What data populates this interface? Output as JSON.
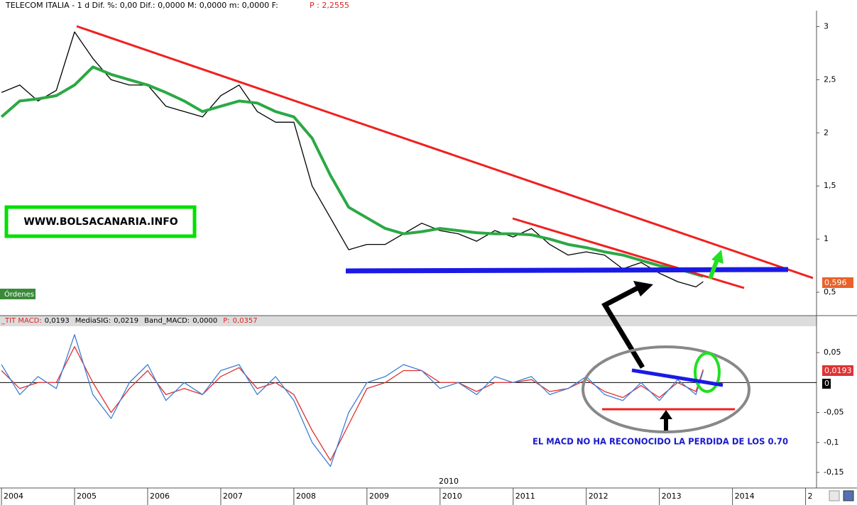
{
  "header": {
    "text": "TELECOM ITALIA -  1 d Dif. %: 0,00 Dif.: 0,0000 M: 0,0000 m: 0,0000 F:",
    "price": "P : 2,2555"
  },
  "watermark": "WWW.BOLSACANARIA.INFO",
  "orders_label": "Órdenes",
  "annotation": "EL MACD NO HA RECONOCIDO LA PERDIDA DE LOS 0.70",
  "chart_data": [
    {
      "type": "line",
      "x": [
        2004.0,
        2004.25,
        2004.5,
        2004.75,
        2005.0,
        2005.25,
        2005.5,
        2005.75,
        2006.0,
        2006.25,
        2006.5,
        2006.75,
        2007.0,
        2007.25,
        2007.5,
        2007.75,
        2008.0,
        2008.25,
        2008.5,
        2008.75,
        2009.0,
        2009.25,
        2009.5,
        2009.75,
        2010.0,
        2010.25,
        2010.5,
        2010.75,
        2011.0,
        2011.25,
        2011.5,
        2011.75,
        2012.0,
        2012.25,
        2012.5,
        2012.75,
        2013.0,
        2013.25,
        2013.5,
        2013.6
      ],
      "series": [
        {
          "color": "#000000",
          "values": [
            2.38,
            2.45,
            2.3,
            2.4,
            2.95,
            2.7,
            2.5,
            2.45,
            2.45,
            2.25,
            2.2,
            2.15,
            2.35,
            2.45,
            2.2,
            2.1,
            2.1,
            1.5,
            1.2,
            0.9,
            0.95,
            0.95,
            1.05,
            1.15,
            1.08,
            1.05,
            0.98,
            1.08,
            1.02,
            1.1,
            0.95,
            0.85,
            0.88,
            0.85,
            0.72,
            0.78,
            0.68,
            0.6,
            0.55,
            0.6
          ]
        },
        {
          "color": "#2ca845",
          "values": [
            2.15,
            2.3,
            2.32,
            2.35,
            2.45,
            2.62,
            2.55,
            2.5,
            2.45,
            2.38,
            2.3,
            2.2,
            2.25,
            2.3,
            2.28,
            2.2,
            2.15,
            1.95,
            1.6,
            1.3,
            1.2,
            1.1,
            1.05,
            1.07,
            1.1,
            1.08,
            1.06,
            1.05,
            1.05,
            1.04,
            1.0,
            0.95,
            0.92,
            0.88,
            0.85,
            0.8,
            0.75,
            0.72,
            0.67,
            0.65
          ]
        }
      ],
      "xlim": [
        2003.98,
        2015.15
      ],
      "ylim": [
        0.28,
        3.15
      ],
      "yticks": [
        3,
        {
          "value": 2.5,
          "label": "2,5"
        },
        2,
        {
          "value": 1.5,
          "label": "1,5"
        },
        1,
        {
          "value": 0.5,
          "label": "0,5"
        }
      ],
      "last_label": "0,596"
    },
    {
      "type": "line",
      "header": [
        {
          "label": "_TIT MACD:",
          "value": "0,0193"
        },
        {
          "label": "MediaSIG:",
          "value": "0,0219"
        },
        {
          "label": "Band_MACD:",
          "value": "0,0000"
        },
        {
          "label": "P:",
          "value": "0,0357"
        }
      ],
      "x": [
        2004.0,
        2004.25,
        2004.5,
        2004.75,
        2005.0,
        2005.25,
        2005.5,
        2005.75,
        2006.0,
        2006.25,
        2006.5,
        2006.75,
        2007.0,
        2007.25,
        2007.5,
        2007.75,
        2008.0,
        2008.25,
        2008.5,
        2008.75,
        2009.0,
        2009.25,
        2009.5,
        2009.75,
        2010.0,
        2010.25,
        2010.5,
        2010.75,
        2011.0,
        2011.25,
        2011.5,
        2011.75,
        2012.0,
        2012.25,
        2012.5,
        2012.75,
        2013.0,
        2013.25,
        2013.5,
        2013.6
      ],
      "series": [
        {
          "color": "#e03030",
          "values": [
            0.02,
            -0.01,
            0.0,
            0.0,
            0.06,
            0.0,
            -0.05,
            -0.01,
            0.02,
            -0.02,
            -0.01,
            -0.02,
            0.01,
            0.025,
            -0.01,
            0.0,
            -0.02,
            -0.08,
            -0.13,
            -0.07,
            -0.01,
            0.0,
            0.02,
            0.02,
            0.0,
            0.0,
            -0.015,
            0.0,
            0.0,
            0.005,
            -0.015,
            -0.01,
            0.005,
            -0.015,
            -0.025,
            -0.005,
            -0.025,
            0.0,
            -0.015,
            0.0219
          ]
        },
        {
          "color": "#3b7fd6",
          "values": [
            0.03,
            -0.02,
            0.01,
            -0.01,
            0.08,
            -0.02,
            -0.06,
            0.0,
            0.03,
            -0.03,
            0.0,
            -0.02,
            0.02,
            0.03,
            -0.02,
            0.01,
            -0.03,
            -0.1,
            -0.14,
            -0.05,
            0.0,
            0.01,
            0.03,
            0.02,
            -0.01,
            0.0,
            -0.02,
            0.01,
            0.0,
            0.01,
            -0.02,
            -0.01,
            0.01,
            -0.02,
            -0.03,
            0.0,
            -0.03,
            0.005,
            -0.02,
            0.0193
          ]
        }
      ],
      "xlim": [
        2003.98,
        2015.15
      ],
      "ylim": [
        -0.176,
        0.094
      ],
      "hline": 0,
      "yticks": [
        {
          "value": 0.05,
          "label": "0,05"
        },
        {
          "value": -0.05,
          "label": "-0,05"
        },
        {
          "value": -0.1,
          "label": "-0,1"
        },
        {
          "value": -0.15,
          "label": "-0,15"
        }
      ],
      "xticks": [
        2004,
        2005,
        2006,
        2007,
        2008,
        2009,
        2010,
        2011,
        2012,
        2013,
        2014,
        {
          "value": 2015,
          "label": "2"
        }
      ],
      "cursor_label": "2010",
      "last_label": "0,0193",
      "band_label": "0"
    }
  ]
}
